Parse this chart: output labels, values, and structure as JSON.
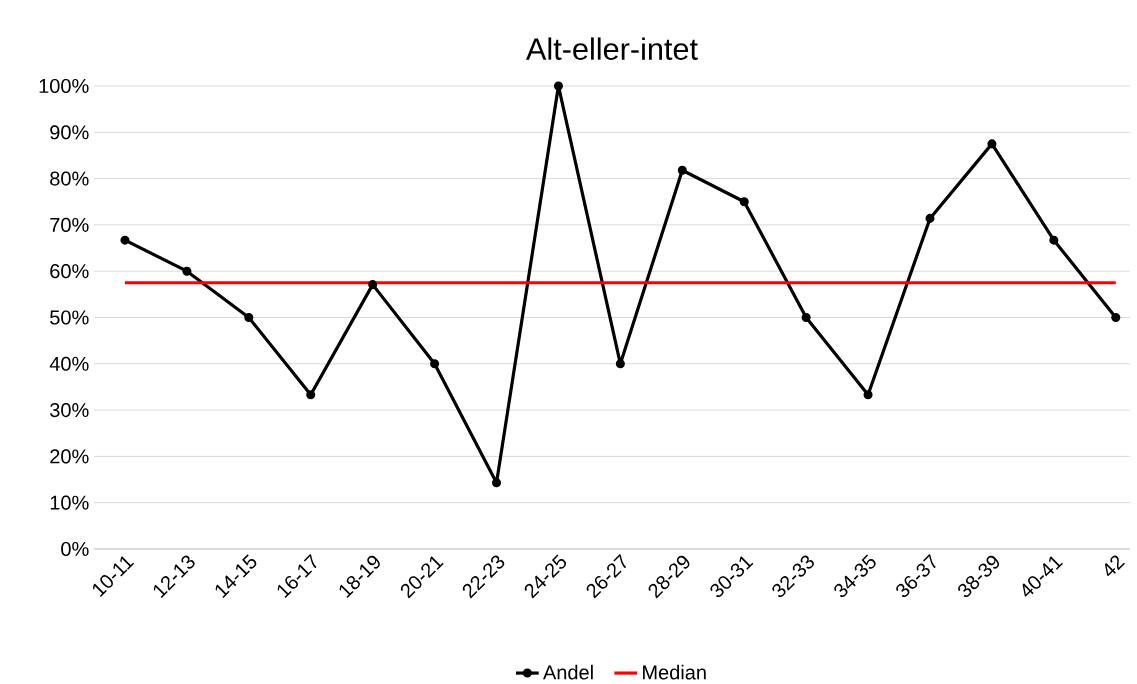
{
  "chart_data": {
    "type": "line",
    "title": "Alt-eller-intet",
    "categories": [
      "10-11",
      "12-13",
      "14-15",
      "16-17",
      "18-19",
      "20-21",
      "22-23",
      "24-25",
      "26-27",
      "28-29",
      "30-31",
      "32-33",
      "34-35",
      "36-37",
      "38-39",
      "40-41",
      "42"
    ],
    "series": [
      {
        "name": "Andel",
        "color": "#000000",
        "marker": "circle",
        "values": [
          66.7,
          60,
          50,
          33.3,
          57.1,
          40,
          14.3,
          100,
          40,
          81.8,
          75,
          50,
          33.3,
          71.4,
          87.5,
          66.7,
          50
        ]
      },
      {
        "name": "Median",
        "color": "#ff0000",
        "marker": "none",
        "values": [
          57.5,
          57.5,
          57.5,
          57.5,
          57.5,
          57.5,
          57.5,
          57.5,
          57.5,
          57.5,
          57.5,
          57.5,
          57.5,
          57.5,
          57.5,
          57.5,
          57.5
        ]
      }
    ],
    "ylim": [
      0,
      100
    ],
    "yticks": [
      {
        "value": 0,
        "label": "0%"
      },
      {
        "value": 10,
        "label": "10%"
      },
      {
        "value": 20,
        "label": "20%"
      },
      {
        "value": 30,
        "label": "30%"
      },
      {
        "value": 40,
        "label": "40%"
      },
      {
        "value": 50,
        "label": "50%"
      },
      {
        "value": 60,
        "label": "60%"
      },
      {
        "value": 70,
        "label": "70%"
      },
      {
        "value": 80,
        "label": "80%"
      },
      {
        "value": 90,
        "label": "90%"
      },
      {
        "value": 100,
        "label": "100%"
      }
    ],
    "grid": "y",
    "legend": "bottom"
  }
}
